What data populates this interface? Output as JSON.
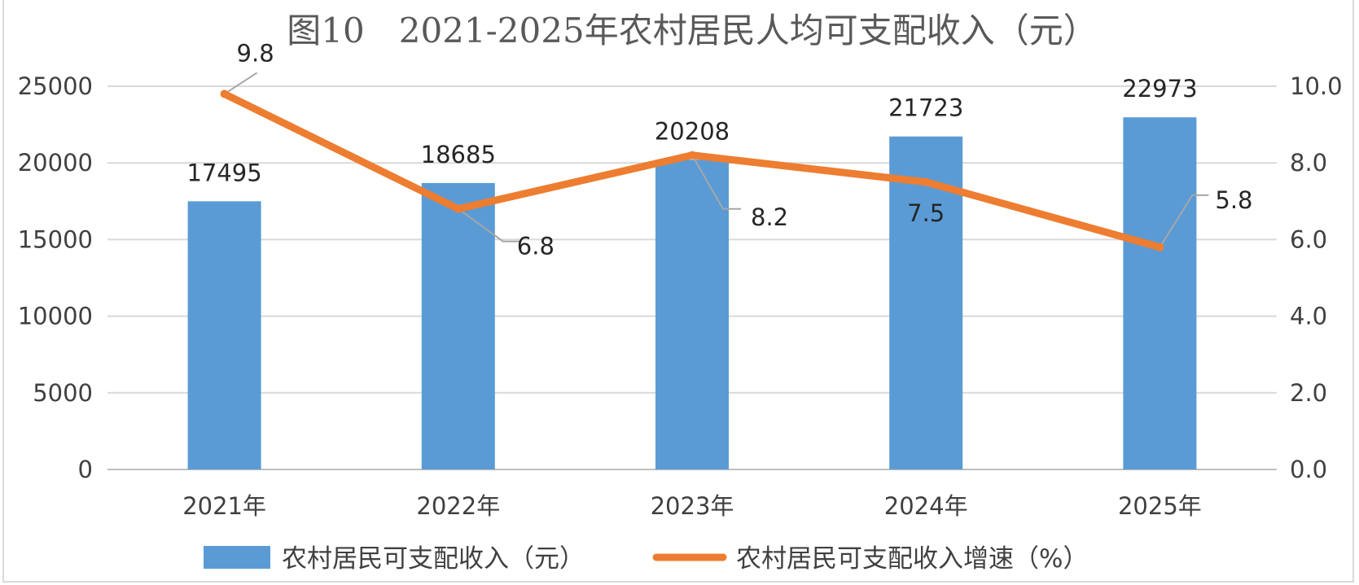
{
  "chart_data": {
    "type": "bar",
    "title": "图10　2021-2025年农村居民人均可支配收入（元）",
    "categories": [
      "2021年",
      "2022年",
      "2023年",
      "2024年",
      "2025年"
    ],
    "series": [
      {
        "name": "农村居民可支配收入（元）",
        "type": "bar",
        "axis": "left",
        "values": [
          17495,
          18685,
          20208,
          21723,
          22973
        ],
        "color": "#5b9bd5"
      },
      {
        "name": "农村居民可支配收入增速（%）",
        "type": "line",
        "axis": "right",
        "values": [
          9.8,
          6.8,
          8.2,
          7.5,
          5.8
        ],
        "color": "#ed7d31"
      }
    ],
    "y_left": {
      "ylim": [
        0,
        25000
      ],
      "ticks": [
        "0",
        "5000",
        "10000",
        "15000",
        "20000",
        "25000"
      ]
    },
    "y_right": {
      "ylim": [
        0,
        10
      ],
      "ticks": [
        "0.0",
        "2.0",
        "4.0",
        "6.0",
        "8.0",
        "10.0"
      ]
    },
    "bar_labels": [
      "17495",
      "18685",
      "20208",
      "21723",
      "22973"
    ],
    "line_labels": [
      "9.8",
      "6.8",
      "8.2",
      "7.5",
      "5.8"
    ],
    "grid": true,
    "legend": "bottom"
  }
}
